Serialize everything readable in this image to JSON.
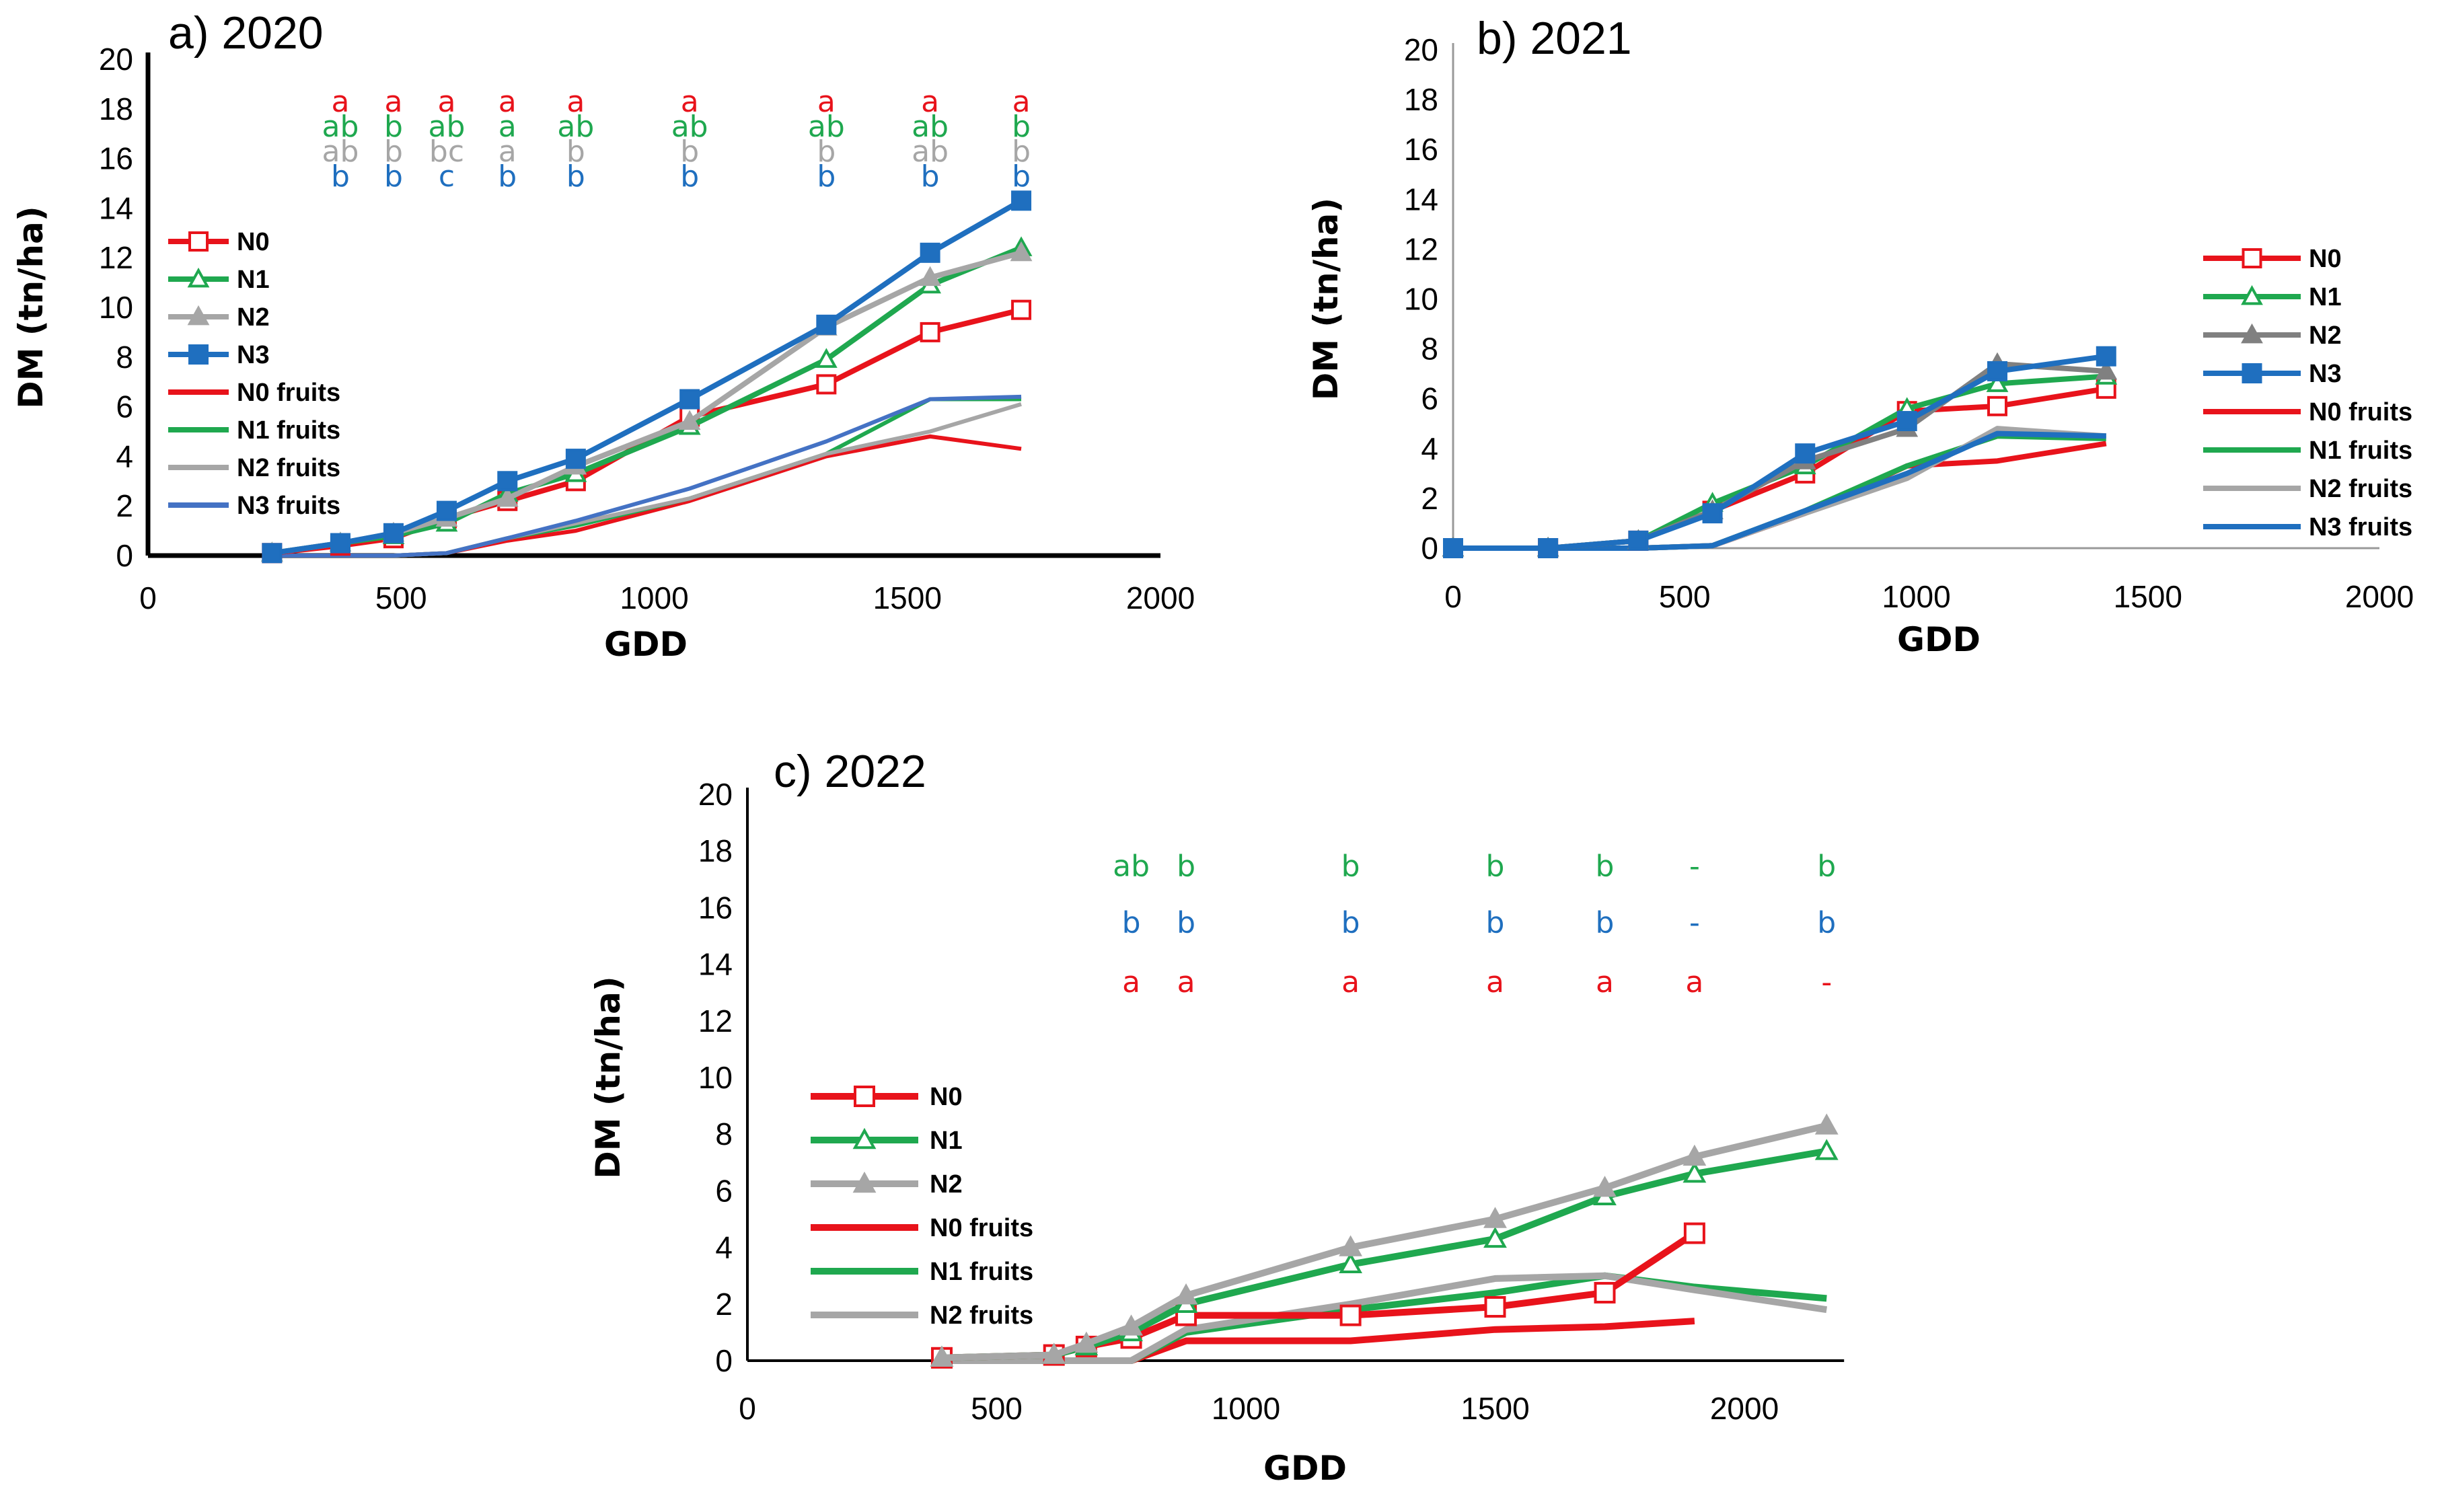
{
  "colors": {
    "N0": "#e8131b",
    "N1": "#1fa84f",
    "N2": "#a6a6a6",
    "N2b": "#808080",
    "N3": "#1f6fbf",
    "N3f": "#4472c4"
  },
  "chart_data": [
    {
      "type": "line",
      "title": "a) 2020",
      "xlabel": "GDD",
      "ylabel": "DM (tn/ha)",
      "xlim": [
        0,
        2000
      ],
      "ylim": [
        0,
        20
      ],
      "xticks": [
        "0",
        "500",
        "1000",
        "1500",
        "2000"
      ],
      "yticks": [
        "0",
        "2",
        "4",
        "6",
        "8",
        "10",
        "12",
        "14",
        "16",
        "18",
        "20"
      ],
      "grid": false,
      "legend": "left",
      "x": [
        245,
        380,
        485,
        590,
        710,
        845,
        1070,
        1340,
        1545,
        1725
      ],
      "series": [
        {
          "name": "N0",
          "color": "#e8131b",
          "marker": "open-square",
          "values": [
            0.1,
            0.4,
            0.7,
            1.5,
            2.2,
            3.0,
            5.6,
            6.9,
            9.0,
            9.9
          ]
        },
        {
          "name": "N1",
          "color": "#1fa84f",
          "marker": "open-triangle",
          "values": [
            0.1,
            0.5,
            0.8,
            1.3,
            2.5,
            3.3,
            5.2,
            7.9,
            10.9,
            12.4
          ]
        },
        {
          "name": "N2",
          "color": "#a6a6a6",
          "marker": "filled-triangle",
          "values": [
            0.1,
            0.5,
            0.9,
            1.5,
            2.3,
            3.6,
            5.4,
            9.2,
            11.2,
            12.2
          ]
        },
        {
          "name": "N3",
          "color": "#1f6fbf",
          "marker": "filled-square",
          "values": [
            0.1,
            0.5,
            0.9,
            1.8,
            3.0,
            3.9,
            6.3,
            9.3,
            12.2,
            14.3
          ]
        },
        {
          "name": "N0 fruits",
          "color": "#e8131b",
          "marker": "none",
          "values": [
            0,
            0,
            0,
            0.1,
            0.6,
            1.0,
            2.2,
            4.0,
            4.8,
            4.3
          ]
        },
        {
          "name": "N1 fruits",
          "color": "#1fa84f",
          "marker": "none",
          "values": [
            0,
            0,
            0,
            0.1,
            0.7,
            1.2,
            2.3,
            4.1,
            6.3,
            6.3
          ]
        },
        {
          "name": "N2 fruits",
          "color": "#a6a6a6",
          "marker": "none",
          "values": [
            0,
            0,
            0,
            0.1,
            0.7,
            1.3,
            2.3,
            4.1,
            5.0,
            6.1
          ]
        },
        {
          "name": "N3 fruits",
          "color": "#4472c4",
          "marker": "none",
          "values": [
            0,
            0,
            0,
            0.1,
            0.7,
            1.4,
            2.7,
            4.6,
            6.3,
            6.4
          ]
        }
      ],
      "letters": {
        "x": [
          380,
          485,
          590,
          710,
          845,
          1070,
          1340,
          1545,
          1725
        ],
        "rows": [
          {
            "color": "#e8131b",
            "y": 18.3,
            "labels": [
              "a",
              "a",
              "a",
              "a",
              "a",
              "a",
              "a",
              "a",
              "a"
            ]
          },
          {
            "color": "#1fa84f",
            "y": 17.3,
            "labels": [
              "ab",
              "b",
              "ab",
              "a",
              "ab",
              "ab",
              "ab",
              "ab",
              "b"
            ]
          },
          {
            "color": "#a6a6a6",
            "y": 16.3,
            "labels": [
              "ab",
              "b",
              "bc",
              "a",
              "b",
              "b",
              "b",
              "ab",
              "b"
            ]
          },
          {
            "color": "#1f6fbf",
            "y": 15.3,
            "labels": [
              "b",
              "b",
              "c",
              "b",
              "b",
              "b",
              "b",
              "b",
              "b"
            ]
          }
        ]
      }
    },
    {
      "type": "line",
      "title": "b) 2021",
      "xlabel": "GDD",
      "ylabel": "DM (tn/ha)",
      "xlim": [
        0,
        2000
      ],
      "ylim": [
        0,
        20
      ],
      "xticks": [
        "0",
        "500",
        "1000",
        "1500",
        "2000"
      ],
      "yticks": [
        "0",
        "2",
        "4",
        "6",
        "8",
        "10",
        "12",
        "14",
        "16",
        "18",
        "20"
      ],
      "grid": false,
      "legend": "right",
      "x": [
        0,
        205,
        400,
        560,
        760,
        980,
        1175,
        1410
      ],
      "series": [
        {
          "name": "N0",
          "color": "#e8131b",
          "marker": "open-square",
          "values": [
            0,
            0,
            0.3,
            1.5,
            3.0,
            5.5,
            5.7,
            6.4
          ]
        },
        {
          "name": "N1",
          "color": "#1fa84f",
          "marker": "open-triangle",
          "values": [
            0,
            0,
            0.3,
            1.8,
            3.3,
            5.6,
            6.6,
            6.9
          ]
        },
        {
          "name": "N2",
          "color": "#808080",
          "marker": "filled-triangle",
          "values": [
            0,
            0,
            0.3,
            1.5,
            3.5,
            4.8,
            7.4,
            7.1
          ]
        },
        {
          "name": "N3",
          "color": "#1f6fbf",
          "marker": "filled-square",
          "values": [
            0,
            0,
            0.3,
            1.4,
            3.8,
            5.1,
            7.1,
            7.7
          ]
        },
        {
          "name": "N0 fruits",
          "color": "#e8131b",
          "marker": "none",
          "values": [
            0,
            0,
            0,
            0.1,
            1.4,
            3.3,
            3.5,
            4.2
          ]
        },
        {
          "name": "N1 fruits",
          "color": "#1fa84f",
          "marker": "none",
          "values": [
            0,
            0,
            0,
            0.1,
            1.5,
            3.3,
            4.5,
            4.4
          ]
        },
        {
          "name": "N2 fruits",
          "color": "#a6a6a6",
          "marker": "none",
          "values": [
            0,
            0,
            0,
            0.1,
            1.4,
            2.8,
            4.8,
            4.5
          ]
        },
        {
          "name": "N3 fruits",
          "color": "#1f6fbf",
          "marker": "none",
          "values": [
            0,
            0,
            0,
            0.1,
            1.5,
            3.0,
            4.6,
            4.5
          ]
        }
      ]
    },
    {
      "type": "line",
      "title": "c) 2022",
      "xlabel": "GDD",
      "ylabel": "DM (tn/ha)",
      "xlim": [
        0,
        2200
      ],
      "ylim": [
        0,
        20
      ],
      "xticks": [
        "0",
        "500",
        "1000",
        "1500",
        "2000"
      ],
      "yticks": [
        "0",
        "2",
        "4",
        "6",
        "8",
        "10",
        "12",
        "14",
        "16",
        "18",
        "20"
      ],
      "grid": false,
      "legend": "left",
      "x": [
        390,
        615,
        680,
        770,
        880,
        1210,
        1500,
        1720,
        1900,
        2165
      ],
      "series": [
        {
          "name": "N0",
          "color": "#e8131b",
          "marker": "open-square",
          "values": [
            0.1,
            0.2,
            0.5,
            0.8,
            1.6,
            1.6,
            1.9,
            2.4,
            4.5,
            null
          ]
        },
        {
          "name": "N1",
          "color": "#1fa84f",
          "marker": "open-triangle",
          "values": [
            0.1,
            0.2,
            0.5,
            1.0,
            2.0,
            3.4,
            4.3,
            5.8,
            6.6,
            7.4
          ]
        },
        {
          "name": "N2",
          "color": "#a6a6a6",
          "marker": "filled-triangle",
          "values": [
            0.1,
            0.2,
            0.6,
            1.2,
            2.3,
            4.0,
            5.0,
            6.1,
            7.2,
            8.3
          ]
        },
        {
          "name": "N0 fruits",
          "color": "#e8131b",
          "marker": "none",
          "values": [
            0,
            0,
            0,
            0,
            0.7,
            0.7,
            1.1,
            1.2,
            1.4,
            null
          ]
        },
        {
          "name": "N1 fruits",
          "color": "#1fa84f",
          "marker": "none",
          "values": [
            0,
            0,
            0,
            0,
            1.0,
            1.8,
            2.4,
            3.0,
            2.6,
            2.2
          ]
        },
        {
          "name": "N2 fruits",
          "color": "#a6a6a6",
          "marker": "none",
          "values": [
            0,
            0,
            0,
            0,
            1.1,
            2.0,
            2.9,
            3.0,
            2.5,
            1.8
          ]
        }
      ],
      "letters": {
        "x": [
          770,
          880,
          1210,
          1500,
          1720,
          1900,
          2165
        ],
        "rows": [
          {
            "color": "#1fa84f",
            "y": 17.6,
            "labels": [
              "ab",
              "b",
              "b",
              "b",
              "b",
              "-",
              "b"
            ]
          },
          {
            "color": "#1f6fbf",
            "y": 15.6,
            "labels": [
              "b",
              "b",
              "b",
              "b",
              "b",
              "-",
              "b"
            ]
          },
          {
            "color": "#e8131b",
            "y": 13.5,
            "labels": [
              "a",
              "a",
              "a",
              "a",
              "a",
              "a",
              "-"
            ]
          }
        ]
      }
    }
  ]
}
